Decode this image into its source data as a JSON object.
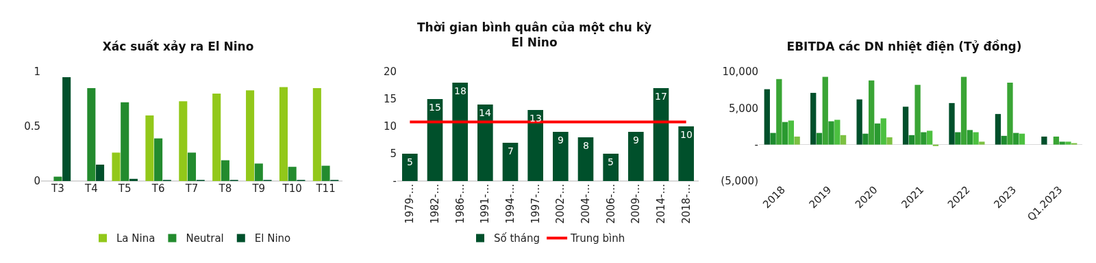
{
  "chart_data": [
    {
      "type": "bar",
      "title": "Xác suất xảy ra El Nino",
      "categories": [
        "T3",
        "T4",
        "T5",
        "T6",
        "T7",
        "T8",
        "T9",
        "T10",
        "T11"
      ],
      "ylim": [
        0,
        1
      ],
      "yticks": [
        0,
        0.5,
        1
      ],
      "legend": "bottom",
      "series": [
        {
          "name": "La Nina",
          "color": "#92c81a",
          "values": [
            0,
            0,
            0.26,
            0.6,
            0.73,
            0.8,
            0.83,
            0.86,
            0.85
          ]
        },
        {
          "name": "Neutral",
          "color": "#238b2e",
          "values": [
            0.04,
            0.85,
            0.72,
            0.39,
            0.26,
            0.19,
            0.16,
            0.13,
            0.14
          ]
        },
        {
          "name": "El Nino",
          "color": "#00502b",
          "values": [
            0.95,
            0.15,
            0.02,
            0.01,
            0.01,
            0.01,
            0.01,
            0.01,
            0.01
          ]
        }
      ]
    },
    {
      "type": "bar",
      "title": "Thời gian bình quân của một chu kỳ\nEl Nino",
      "categories": [
        "1979-…",
        "1982-…",
        "1986-…",
        "1991-…",
        "1994-…",
        "1997-…",
        "2002-…",
        "2004-…",
        "2006-…",
        "2009-…",
        "2014-…",
        "2018-…"
      ],
      "ylim": [
        0,
        20
      ],
      "yticks": [
        {
          "value": 0,
          "label": "-"
        },
        5,
        10,
        15,
        20
      ],
      "legend": "bottom",
      "series": [
        {
          "name": "Số tháng",
          "color": "#00502b",
          "values": [
            5,
            15,
            18,
            14,
            7,
            13,
            9,
            8,
            5,
            9,
            17,
            10
          ],
          "value_labels": [
            "5",
            "15",
            "18",
            "14",
            "7",
            "13",
            "9",
            "8",
            "5",
            "9",
            "17",
            "10"
          ]
        },
        {
          "name": "Trung bình",
          "type": "line",
          "color": "#ff0000",
          "values": [
            10.8,
            10.8,
            10.8,
            10.8,
            10.8,
            10.8,
            10.8,
            10.8,
            10.8,
            10.8,
            10.8,
            10.8
          ]
        }
      ]
    },
    {
      "type": "bar",
      "title": "EBITDA các DN nhiệt điện (Tỷ đồng)",
      "categories": [
        "2018",
        "2019",
        "2020",
        "2021",
        "2022",
        "2023",
        "Q1.2023"
      ],
      "ylim": [
        -5000,
        10000
      ],
      "yticks": [
        {
          "value": -5000,
          "label": "(5,000)"
        },
        {
          "value": 0,
          "label": "-"
        },
        {
          "value": 5000,
          "label": "5,000"
        },
        {
          "value": 10000,
          "label": "10,000"
        }
      ],
      "legend": false,
      "series": [
        {
          "color": "#00502b",
          "values": [
            7600,
            7100,
            6200,
            5200,
            5700,
            4200,
            1100
          ]
        },
        {
          "color": "#1e8b2e",
          "values": [
            1600,
            1600,
            1500,
            1300,
            1700,
            1200,
            null
          ]
        },
        {
          "color": "#3aa535",
          "values": [
            9000,
            9300,
            8800,
            8200,
            9300,
            8500,
            1100
          ]
        },
        {
          "color": "#2a9a30",
          "values": [
            3100,
            3200,
            2900,
            1700,
            2000,
            1600,
            400
          ]
        },
        {
          "color": "#4cc040",
          "values": [
            3300,
            3400,
            3600,
            1900,
            1700,
            1500,
            400
          ]
        },
        {
          "color": "#7cc142",
          "values": [
            1100,
            1300,
            1000,
            -200,
            400,
            0,
            200
          ]
        }
      ]
    }
  ]
}
